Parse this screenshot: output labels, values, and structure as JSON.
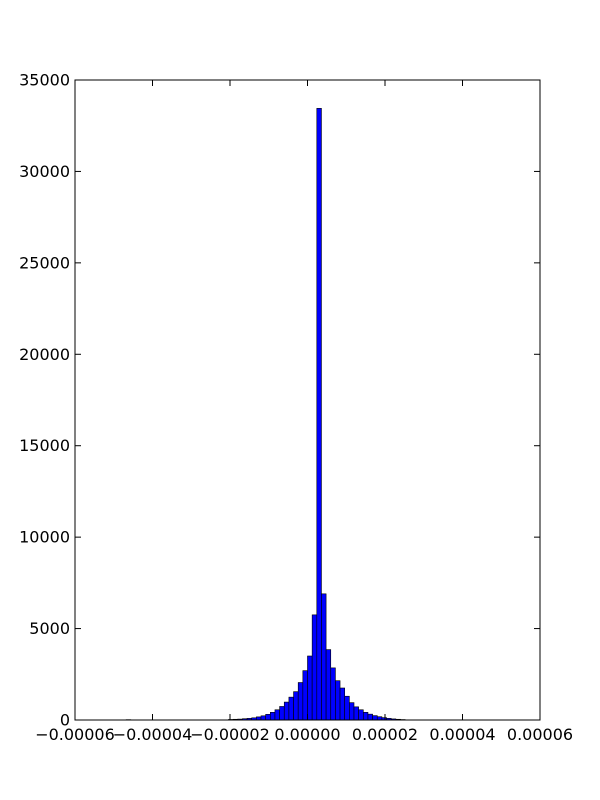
{
  "chart_data": {
    "type": "bar",
    "title": "",
    "xlabel": "",
    "ylabel": "",
    "xlim": [
      -6e-05,
      6e-05
    ],
    "ylim": [
      0,
      35000
    ],
    "grid": false,
    "bar_color": "#0000ff",
    "edge_color": "#000000",
    "bin_width": 1.2e-06,
    "x_ticks": [
      {
        "value": -6e-05,
        "label": "−0.00006"
      },
      {
        "value": -4e-05,
        "label": "−0.00004"
      },
      {
        "value": -2e-05,
        "label": "−0.00002"
      },
      {
        "value": 0,
        "label": "0.00000"
      },
      {
        "value": 2e-05,
        "label": "0.00002"
      },
      {
        "value": 4e-05,
        "label": "0.00004"
      },
      {
        "value": 6e-05,
        "label": "0.00006"
      }
    ],
    "y_ticks": [
      {
        "value": 0,
        "label": "0"
      },
      {
        "value": 5000,
        "label": "5000"
      },
      {
        "value": 10000,
        "label": "10000"
      },
      {
        "value": 15000,
        "label": "15000"
      },
      {
        "value": 20000,
        "label": "20000"
      },
      {
        "value": 25000,
        "label": "25000"
      },
      {
        "value": 30000,
        "label": "30000"
      },
      {
        "value": 35000,
        "label": "35000"
      }
    ],
    "bins": [
      {
        "x": -4.68e-05,
        "count": 20
      },
      {
        "x": -2.04e-05,
        "count": 30
      },
      {
        "x": -1.92e-05,
        "count": 40
      },
      {
        "x": -1.8e-05,
        "count": 50
      },
      {
        "x": -1.68e-05,
        "count": 70
      },
      {
        "x": -1.56e-05,
        "count": 90
      },
      {
        "x": -1.44e-05,
        "count": 120
      },
      {
        "x": -1.32e-05,
        "count": 170
      },
      {
        "x": -1.2e-05,
        "count": 230
      },
      {
        "x": -1.08e-05,
        "count": 310
      },
      {
        "x": -9.6e-06,
        "count": 420
      },
      {
        "x": -8.4e-06,
        "count": 560
      },
      {
        "x": -7.2e-06,
        "count": 740
      },
      {
        "x": -6e-06,
        "count": 980
      },
      {
        "x": -4.8e-06,
        "count": 1250
      },
      {
        "x": -3.6e-06,
        "count": 1550
      },
      {
        "x": -2.4e-06,
        "count": 2050
      },
      {
        "x": -1.2e-06,
        "count": 2700
      },
      {
        "x": 0.0,
        "count": 3500
      },
      {
        "x": 1.2e-06,
        "count": 5750
      },
      {
        "x": 2.4e-06,
        "count": 33450
      },
      {
        "x": 3.6e-06,
        "count": 6900
      },
      {
        "x": 4.8e-06,
        "count": 3850
      },
      {
        "x": 6e-06,
        "count": 2850
      },
      {
        "x": 7.2e-06,
        "count": 2150
      },
      {
        "x": 8.4e-06,
        "count": 1750
      },
      {
        "x": 9.6e-06,
        "count": 1300
      },
      {
        "x": 1.08e-05,
        "count": 950
      },
      {
        "x": 1.2e-05,
        "count": 720
      },
      {
        "x": 1.32e-05,
        "count": 560
      },
      {
        "x": 1.44e-05,
        "count": 420
      },
      {
        "x": 1.56e-05,
        "count": 320
      },
      {
        "x": 1.68e-05,
        "count": 240
      },
      {
        "x": 1.8e-05,
        "count": 180
      },
      {
        "x": 1.92e-05,
        "count": 130
      },
      {
        "x": 2.04e-05,
        "count": 90
      },
      {
        "x": 2.16e-05,
        "count": 60
      },
      {
        "x": 2.28e-05,
        "count": 40
      },
      {
        "x": 2.4e-05,
        "count": 25
      }
    ]
  }
}
